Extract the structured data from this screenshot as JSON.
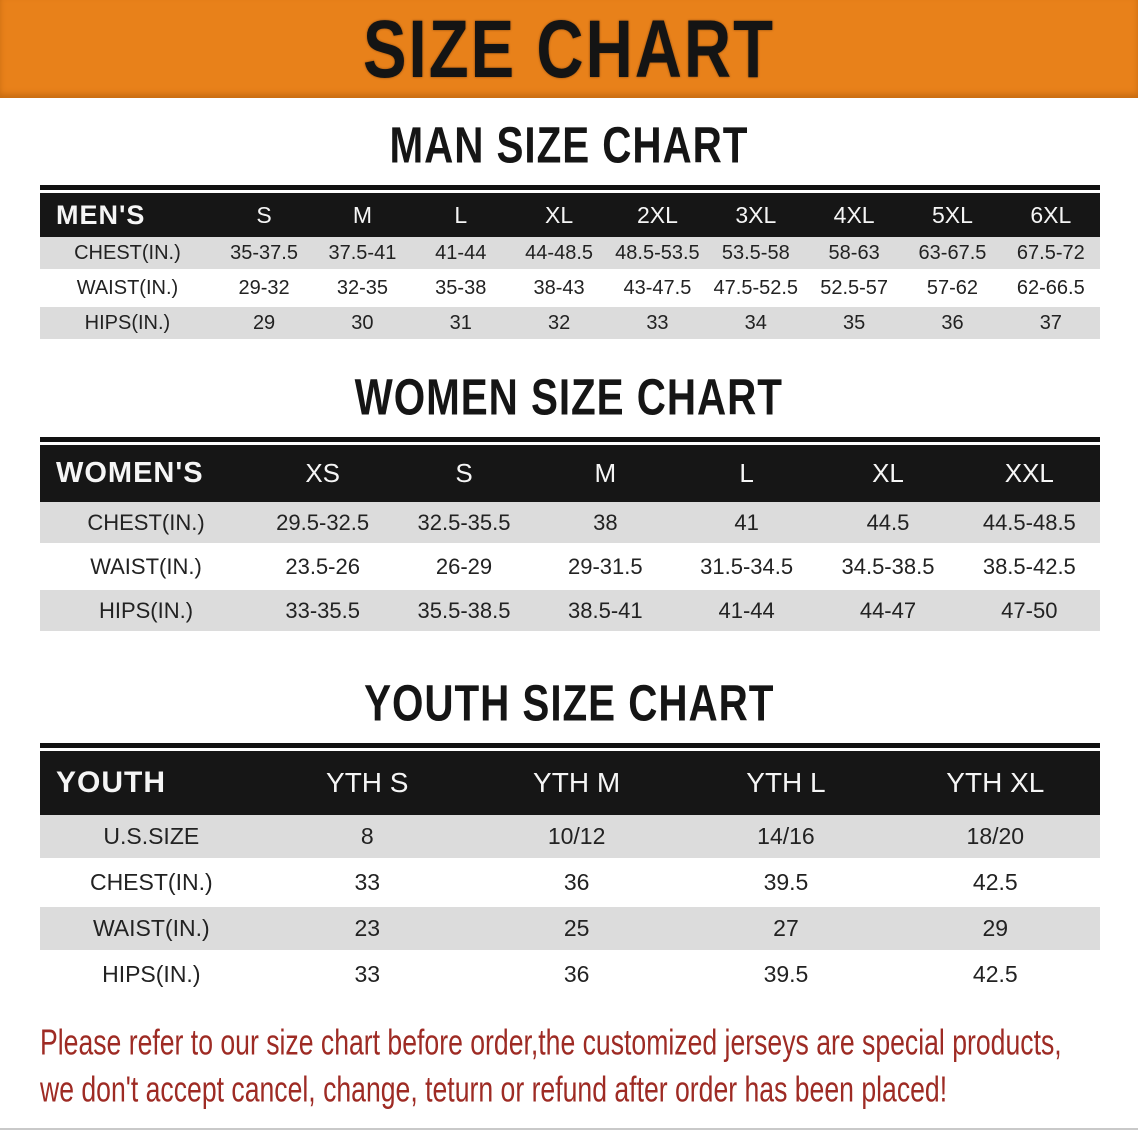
{
  "banner": {
    "title": "SIZE CHART",
    "bg_color": "#E8811A",
    "title_color": "#141414"
  },
  "men": {
    "heading": "MAN SIZE CHART",
    "header_label": "MEN'S",
    "columns": [
      "S",
      "M",
      "L",
      "XL",
      "2XL",
      "3XL",
      "4XL",
      "5XL",
      "6XL"
    ],
    "rows": [
      {
        "label": "CHEST(IN.)",
        "values": [
          "35-37.5",
          "37.5-41",
          "41-44",
          "44-48.5",
          "48.5-53.5",
          "53.5-58",
          "58-63",
          "63-67.5",
          "67.5-72"
        ]
      },
      {
        "label": "WAIST(IN.)",
        "values": [
          "29-32",
          "32-35",
          "35-38",
          "38-43",
          "43-47.5",
          "47.5-52.5",
          "52.5-57",
          "57-62",
          "62-66.5"
        ]
      },
      {
        "label": "HIPS(IN.)",
        "values": [
          "29",
          "30",
          "31",
          "32",
          "33",
          "34",
          "35",
          "36",
          "37"
        ]
      }
    ]
  },
  "women": {
    "heading": "WOMEN SIZE CHART",
    "header_label": "WOMEN'S",
    "columns": [
      "XS",
      "S",
      "M",
      "L",
      "XL",
      "XXL"
    ],
    "rows": [
      {
        "label": "CHEST(IN.)",
        "values": [
          "29.5-32.5",
          "32.5-35.5",
          "38",
          "41",
          "44.5",
          "44.5-48.5"
        ]
      },
      {
        "label": "WAIST(IN.)",
        "values": [
          "23.5-26",
          "26-29",
          "29-31.5",
          "31.5-34.5",
          "34.5-38.5",
          "38.5-42.5"
        ]
      },
      {
        "label": "HIPS(IN.)",
        "values": [
          "33-35.5",
          "35.5-38.5",
          "38.5-41",
          "41-44",
          "44-47",
          "47-50"
        ]
      }
    ]
  },
  "youth": {
    "heading": "YOUTH SIZE CHART",
    "header_label": "YOUTH",
    "columns": [
      "YTH S",
      "YTH M",
      "YTH L",
      "YTH XL"
    ],
    "rows": [
      {
        "label": "U.S.SIZE",
        "values": [
          "8",
          "10/12",
          "14/16",
          "18/20"
        ]
      },
      {
        "label": "CHEST(IN.)",
        "values": [
          "33",
          "36",
          "39.5",
          "42.5"
        ]
      },
      {
        "label": "WAIST(IN.)",
        "values": [
          "23",
          "25",
          "27",
          "29"
        ]
      },
      {
        "label": "HIPS(IN.)",
        "values": [
          "33",
          "36",
          "39.5",
          "42.5"
        ]
      }
    ]
  },
  "disclaimer": {
    "line1": "Please refer to our size chart before order,the customized jerseys are special products,",
    "line2": "we don't accept cancel, change, teturn or refund after order has been placed!",
    "text_color": "#9E2B24"
  }
}
